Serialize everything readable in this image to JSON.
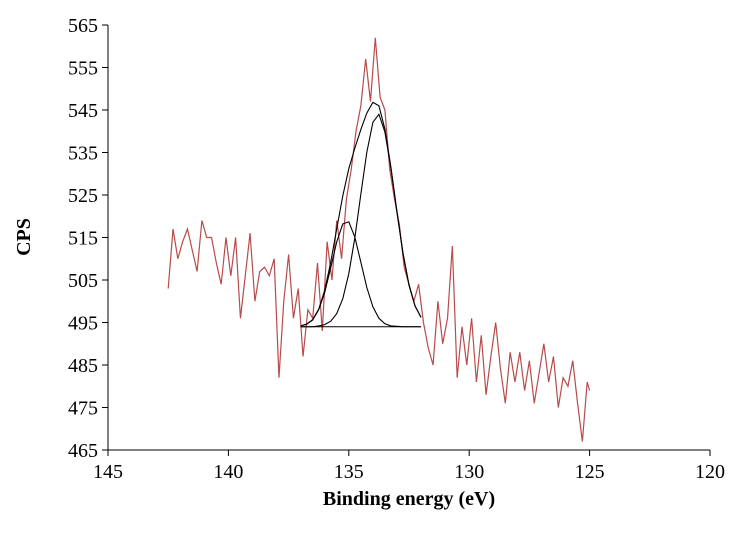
{
  "chart_data": {
    "type": "line",
    "xlabel": "Binding energy (eV)",
    "ylabel": "CPS",
    "xlim": [
      145,
      120
    ],
    "xticks": [
      145,
      140,
      135,
      130,
      125,
      120
    ],
    "ylim": [
      465,
      565
    ],
    "yticks": [
      465,
      475,
      485,
      495,
      505,
      515,
      525,
      535,
      545,
      555,
      565
    ],
    "series": [
      {
        "color": "#b84b4b",
        "x": [
          142.5,
          142.3,
          142.1,
          141.9,
          141.7,
          141.5,
          141.3,
          141.1,
          140.9,
          140.7,
          140.5,
          140.3,
          140.1,
          139.9,
          139.7,
          139.5,
          139.3,
          139.1,
          138.9,
          138.7,
          138.5,
          138.3,
          138.1,
          137.9,
          137.7,
          137.5,
          137.3,
          137.1,
          136.9,
          136.7,
          136.5,
          136.3,
          136.1,
          135.9,
          135.7,
          135.5,
          135.3,
          135.1,
          134.9,
          134.7,
          134.5,
          134.3,
          134.1,
          133.9,
          133.7,
          133.5,
          133.3,
          133.1,
          132.9,
          132.7,
          132.5,
          132.3,
          132.1,
          131.9,
          131.7,
          131.5,
          131.3,
          131.1,
          130.9,
          130.7,
          130.5,
          130.3,
          130.1,
          129.9,
          129.7,
          129.5,
          129.3,
          129.1,
          128.9,
          128.7,
          128.5,
          128.3,
          128.1,
          127.9,
          127.7,
          127.5,
          127.3,
          127.1,
          126.9,
          126.7,
          126.5,
          126.3,
          126.1,
          125.9,
          125.7,
          125.5,
          125.3,
          125.1,
          125.0
        ],
        "values": [
          503,
          517,
          510,
          514,
          517,
          512,
          507,
          519,
          515,
          515,
          509,
          504,
          515,
          506,
          515,
          496,
          506,
          516,
          500,
          507,
          508,
          506,
          510,
          482,
          500,
          511,
          496,
          503,
          487,
          498,
          496,
          509,
          493,
          514,
          505,
          519,
          510,
          524,
          531,
          540,
          546,
          557,
          547,
          562,
          548,
          545,
          531,
          524,
          518,
          508,
          504,
          500,
          504,
          495,
          489,
          485,
          500,
          490,
          496,
          513,
          482,
          494,
          485,
          496,
          481,
          492,
          478,
          487,
          495,
          484,
          476,
          488,
          481,
          488,
          479,
          486,
          476,
          483,
          490,
          481,
          487,
          475,
          482,
          480,
          486,
          476,
          467,
          481,
          479
        ]
      },
      {
        "color": "#000000",
        "x": [
          137,
          136.75,
          136.5,
          136.25,
          136,
          135.75,
          135.5,
          135.25,
          135,
          134.75,
          134.5,
          134.25,
          134,
          133.75,
          133.5,
          133.25,
          133,
          132.75,
          132.5,
          132.25,
          132
        ],
        "values": [
          494.0,
          494.0,
          494.0,
          494.2,
          494.5,
          495.3,
          497.1,
          500.6,
          506.5,
          514.9,
          525.2,
          535.1,
          542.1,
          544.0,
          539.8,
          531.3,
          521.0,
          511.3,
          503.8,
          498.9,
          496.2
        ]
      },
      {
        "color": "#000000",
        "x": [
          137,
          136.75,
          136.5,
          136.25,
          136,
          135.75,
          135.5,
          135.25,
          135,
          134.75,
          134.5,
          134.25,
          134,
          133.75,
          133.5,
          133.25,
          133,
          132.75,
          132.5,
          132.25,
          132
        ],
        "values": [
          494.2,
          494.6,
          495.6,
          498.0,
          502.1,
          507.9,
          514.0,
          518.2,
          518.7,
          515.1,
          509.2,
          503.2,
          498.7,
          496.0,
          494.7,
          494.2,
          494.1,
          494.0,
          494.0,
          494.0,
          494.0
        ]
      },
      {
        "color": "#000000",
        "x": [
          137,
          136.75,
          136.5,
          136.25,
          136,
          135.75,
          135.5,
          135.25,
          135,
          134.75,
          134.5,
          134.25,
          134,
          133.75,
          133.5,
          133.25,
          133,
          132.75,
          132.5,
          132.25,
          132
        ],
        "values": [
          494.2,
          494.6,
          495.7,
          498.1,
          502.6,
          509.2,
          517.1,
          524.8,
          531.2,
          536.0,
          540.4,
          544.3,
          546.8,
          546.0,
          540.5,
          531.5,
          521.0,
          511.3,
          503.8,
          498.9,
          496.2
        ]
      },
      {
        "color": "#000000",
        "x": [
          137,
          132
        ],
        "values": [
          494,
          494
        ]
      }
    ]
  }
}
